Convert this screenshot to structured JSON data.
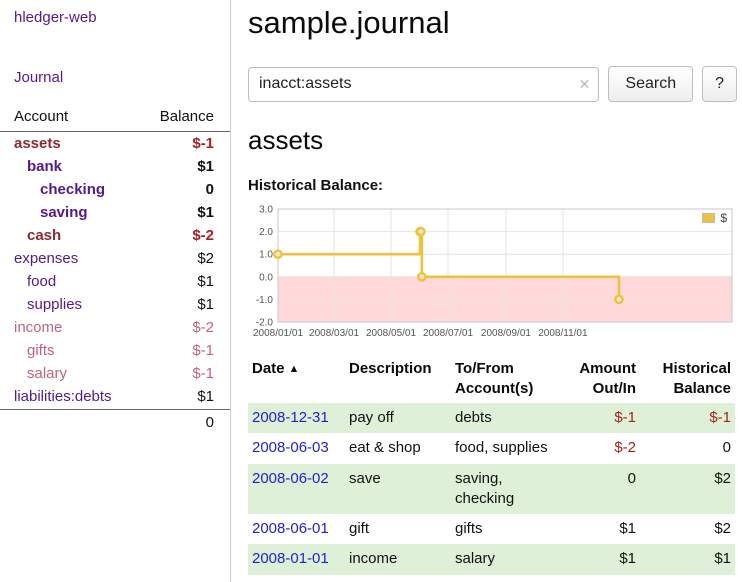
{
  "app": {
    "title": "hledger-web",
    "nav": {
      "journal": "Journal"
    }
  },
  "sidebar": {
    "accounts_header": "Account",
    "balance_header": "Balance",
    "rows": [
      {
        "name": "assets",
        "balance": "$-1",
        "indent": 0,
        "bold": true,
        "negative": true
      },
      {
        "name": "bank",
        "balance": "$1",
        "indent": 1,
        "bold": true,
        "negative": false
      },
      {
        "name": "checking",
        "balance": "0",
        "indent": 2,
        "bold": true,
        "negative": false
      },
      {
        "name": "saving",
        "balance": "$1",
        "indent": 2,
        "bold": true,
        "negative": false
      },
      {
        "name": "cash",
        "balance": "$-2",
        "indent": 1,
        "bold": true,
        "negative": true
      },
      {
        "name": "expenses",
        "balance": "$2",
        "indent": 0,
        "bold": false,
        "negative": false
      },
      {
        "name": "food",
        "balance": "$1",
        "indent": 1,
        "bold": false,
        "negative": false
      },
      {
        "name": "supplies",
        "balance": "$1",
        "indent": 1,
        "bold": false,
        "negative": false
      },
      {
        "name": "income",
        "balance": "$-2",
        "indent": 0,
        "bold": false,
        "negative": true
      },
      {
        "name": "gifts",
        "balance": "$-1",
        "indent": 1,
        "bold": false,
        "negative": true
      },
      {
        "name": "salary",
        "balance": "$-1",
        "indent": 1,
        "bold": false,
        "negative": true
      },
      {
        "name": "liabilities:debts",
        "balance": "$1",
        "indent": 0,
        "bold": false,
        "negative": false
      }
    ],
    "total": "0"
  },
  "main": {
    "title": "sample.journal",
    "search": {
      "value": "inacct:assets",
      "clear_icon": "✕",
      "button_label": "Search",
      "help_label": "?"
    },
    "section_title": "assets",
    "chart_heading": "Historical Balance:"
  },
  "chart_data": {
    "type": "line",
    "title": "Historical Balance",
    "step": true,
    "grid": true,
    "ylim": [
      -2,
      3
    ],
    "yticks": [
      3,
      2,
      1,
      0,
      -1,
      -2
    ],
    "xlim": [
      "2008-01-01",
      "2009-05-01"
    ],
    "xticks": [
      "2008/01/01",
      "2008/03/01",
      "2008/05/01",
      "2008/07/01",
      "2008/09/01",
      "2008/11/01"
    ],
    "legend": {
      "label": "$",
      "position": "top-right"
    },
    "negative_region_color": "#ffd9d9",
    "series": [
      {
        "name": "$",
        "color": "#edc240",
        "points": [
          {
            "x": "2008-01-01",
            "y": 1
          },
          {
            "x": "2008-06-01",
            "y": 2
          },
          {
            "x": "2008-06-02",
            "y": 2
          },
          {
            "x": "2008-06-03",
            "y": 0
          },
          {
            "x": "2008-12-31",
            "y": -1
          }
        ]
      }
    ]
  },
  "register": {
    "headers": {
      "date": "Date",
      "sort_icon": "▲",
      "description": "Description",
      "accounts_line1": "To/From",
      "accounts_line2": "Account(s)",
      "amount_line1": "Amount",
      "amount_line2": "Out/In",
      "balance_line1": "Historical",
      "balance_line2": "Balance"
    },
    "rows": [
      {
        "date": "2008-12-31",
        "description": "pay off",
        "accounts": "debts",
        "amount": "$-1",
        "balance": "$-1"
      },
      {
        "date": "2008-06-03",
        "description": "eat & shop",
        "accounts": "food, supplies",
        "amount": "$-2",
        "balance": "0"
      },
      {
        "date": "2008-06-02",
        "description": "save",
        "accounts": "saving, checking",
        "amount": "0",
        "balance": "$2"
      },
      {
        "date": "2008-06-01",
        "description": "gift",
        "accounts": "gifts",
        "amount": "$1",
        "balance": "$2"
      },
      {
        "date": "2008-01-01",
        "description": "income",
        "accounts": "salary",
        "amount": "$1",
        "balance": "$1"
      }
    ]
  },
  "colors": {
    "link_purple": "#551a8b",
    "link_blue": "#2222cc",
    "negative_red": "#a3241c",
    "negative_soft": "#bf647a",
    "row_stripe_green": "#dff0d8",
    "series_yellow": "#edc240"
  }
}
